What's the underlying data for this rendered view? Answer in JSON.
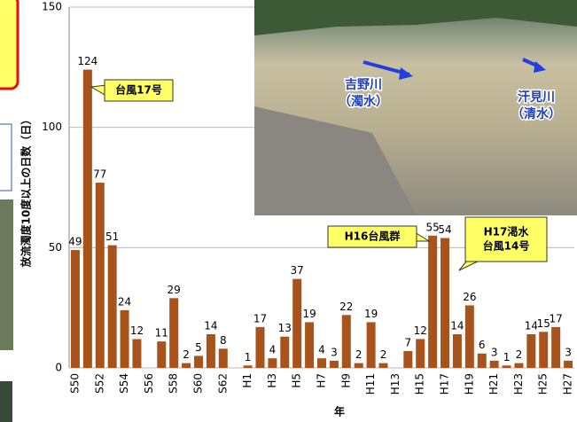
{
  "chart_data": {
    "type": "bar",
    "y_label": "放流濁度10度以上の日数（日）",
    "x_label": "年",
    "categories": [
      "S50",
      null,
      "S52",
      null,
      "S54",
      null,
      "S56",
      null,
      "S58",
      null,
      "S60",
      null,
      "S62",
      null,
      "H1",
      null,
      "H3",
      null,
      "H5",
      null,
      "H7",
      null,
      "H9",
      null,
      "H11",
      null,
      "H13",
      null,
      "H15",
      null,
      "H17",
      null,
      "H19",
      null,
      "H21",
      null,
      "H23",
      null,
      "H25",
      null,
      "H27"
    ],
    "values": [
      49,
      124,
      77,
      51,
      24,
      12,
      null,
      11,
      29,
      2,
      5,
      14,
      8,
      null,
      1,
      17,
      4,
      13,
      37,
      19,
      4,
      3,
      22,
      2,
      19,
      2,
      null,
      7,
      12,
      55,
      54,
      14,
      26,
      6,
      3,
      1,
      2,
      14,
      15,
      17,
      3
    ],
    "color": "#a8531b",
    "ylim": [
      0,
      150
    ],
    "yticks": [
      0,
      50,
      100,
      150
    ],
    "grid": true,
    "annotations": [
      [
        "台風17号"
      ],
      [
        "H16台風群"
      ],
      [
        "H17渇水",
        "台風14号"
      ]
    ]
  },
  "photo": {
    "labels": [
      [
        "吉野川",
        "（濁水）"
      ],
      [
        "汗見川",
        "（清水）"
      ]
    ]
  }
}
